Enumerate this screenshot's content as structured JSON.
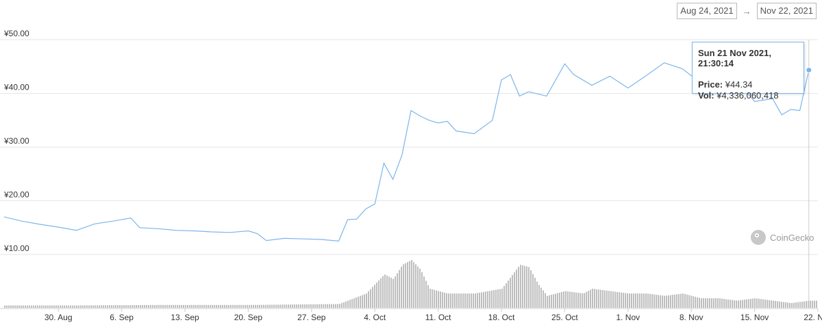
{
  "date_range": {
    "start": "Aug 24, 2021",
    "arrow": "→",
    "end": "Nov 22, 2021"
  },
  "tooltip": {
    "title": "Sun 21 Nov 2021, 21:30:14",
    "price_label": "Price:",
    "price_value": "¥44.34",
    "vol_label": "Vol:",
    "vol_value": "¥4,336,060,418"
  },
  "brand": {
    "name": "CoinGecko"
  },
  "colors": {
    "price_line": "#7cb5ec",
    "volume_bars": "#bdbdbd",
    "grid": "#e6e6e6"
  },
  "chart_data": {
    "type": "line",
    "title": "",
    "xlabel": "",
    "ylabel": "",
    "ylim": [
      10,
      50
    ],
    "yticks": [
      {
        "value": 10,
        "label": "¥10.00"
      },
      {
        "value": 20,
        "label": "¥20.00"
      },
      {
        "value": 30,
        "label": "¥30.00"
      },
      {
        "value": 40,
        "label": "¥40.00"
      },
      {
        "value": 50,
        "label": "¥50.00"
      }
    ],
    "xlim": [
      "2021-08-24",
      "2021-11-22"
    ],
    "xticks": [
      {
        "date": "2021-08-30",
        "label": "30. Aug"
      },
      {
        "date": "2021-09-06",
        "label": "6. Sep"
      },
      {
        "date": "2021-09-13",
        "label": "13. Sep"
      },
      {
        "date": "2021-09-20",
        "label": "20. Sep"
      },
      {
        "date": "2021-09-27",
        "label": "27. Sep"
      },
      {
        "date": "2021-10-04",
        "label": "4. Oct"
      },
      {
        "date": "2021-10-11",
        "label": "11. Oct"
      },
      {
        "date": "2021-10-18",
        "label": "18. Oct"
      },
      {
        "date": "2021-10-25",
        "label": "25. Oct"
      },
      {
        "date": "2021-11-01",
        "label": "1. Nov"
      },
      {
        "date": "2021-11-08",
        "label": "8. Nov"
      },
      {
        "date": "2021-11-15",
        "label": "15. Nov"
      },
      {
        "date": "2021-11-22",
        "label": "22. Nov"
      }
    ],
    "grid": true,
    "legend": "none",
    "price_series": {
      "x": [
        "2021-08-24",
        "2021-08-26",
        "2021-08-28",
        "2021-08-30",
        "2021-09-01",
        "2021-09-03",
        "2021-09-05",
        "2021-09-07",
        "2021-09-08",
        "2021-09-10",
        "2021-09-12",
        "2021-09-14",
        "2021-09-16",
        "2021-09-18",
        "2021-09-20",
        "2021-09-21",
        "2021-09-22",
        "2021-09-24",
        "2021-09-26",
        "2021-09-28",
        "2021-09-30",
        "2021-10-01",
        "2021-10-02",
        "2021-10-03",
        "2021-10-04",
        "2021-10-05",
        "2021-10-06",
        "2021-10-07",
        "2021-10-08",
        "2021-10-09",
        "2021-10-10",
        "2021-10-11",
        "2021-10-12",
        "2021-10-13",
        "2021-10-15",
        "2021-10-17",
        "2021-10-18",
        "2021-10-19",
        "2021-10-20",
        "2021-10-21",
        "2021-10-23",
        "2021-10-25",
        "2021-10-26",
        "2021-10-28",
        "2021-10-30",
        "2021-11-01",
        "2021-11-03",
        "2021-11-05",
        "2021-11-07",
        "2021-11-09",
        "2021-11-11",
        "2021-11-13",
        "2021-11-15",
        "2021-11-17",
        "2021-11-18",
        "2021-11-19",
        "2021-11-20",
        "2021-11-21"
      ],
      "y": [
        17.0,
        16.2,
        15.6,
        15.1,
        14.5,
        15.7,
        16.2,
        16.8,
        15.0,
        14.8,
        14.5,
        14.4,
        14.2,
        14.1,
        14.4,
        13.9,
        12.6,
        13.0,
        12.9,
        12.8,
        12.5,
        16.5,
        16.6,
        18.5,
        19.4,
        27.0,
        24.0,
        28.5,
        36.8,
        35.8,
        35.0,
        34.5,
        34.8,
        33.0,
        32.5,
        35.0,
        42.5,
        43.5,
        39.5,
        40.3,
        39.5,
        45.5,
        43.5,
        41.5,
        43.2,
        41.0,
        43.3,
        45.7,
        44.6,
        42.0,
        41.8,
        42.5,
        38.5,
        39.0,
        36.0,
        37.0,
        36.8,
        44.34
      ]
    },
    "volume_series": {
      "x": [
        "2021-08-24",
        "2021-09-01",
        "2021-09-10",
        "2021-09-20",
        "2021-09-30",
        "2021-10-03",
        "2021-10-05",
        "2021-10-06",
        "2021-10-07",
        "2021-10-08",
        "2021-10-09",
        "2021-10-10",
        "2021-10-12",
        "2021-10-15",
        "2021-10-18",
        "2021-10-20",
        "2021-10-21",
        "2021-10-22",
        "2021-10-23",
        "2021-10-25",
        "2021-10-27",
        "2021-10-28",
        "2021-10-30",
        "2021-11-01",
        "2021-11-03",
        "2021-11-05",
        "2021-11-07",
        "2021-11-09",
        "2021-11-11",
        "2021-11-13",
        "2021-11-15",
        "2021-11-17",
        "2021-11-19",
        "2021-11-21"
      ],
      "y": [
        0.05,
        0.05,
        0.06,
        0.06,
        0.08,
        0.3,
        0.7,
        0.6,
        0.9,
        1.0,
        0.8,
        0.4,
        0.3,
        0.3,
        0.4,
        0.9,
        0.85,
        0.5,
        0.25,
        0.35,
        0.3,
        0.4,
        0.35,
        0.3,
        0.3,
        0.25,
        0.3,
        0.2,
        0.2,
        0.15,
        0.2,
        0.15,
        0.1,
        0.15
      ]
    },
    "tooltip_point": {
      "date": "2021-11-21",
      "value": 44.34
    }
  }
}
